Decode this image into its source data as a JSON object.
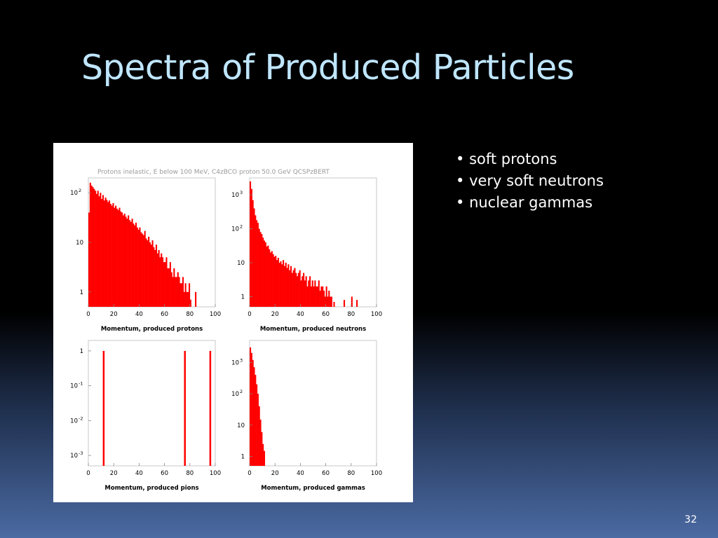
{
  "slide": {
    "title": "Spectra of Produced Particles",
    "bullets": [
      "soft protons",
      "very soft neutrons",
      "nuclear gammas"
    ],
    "page_number": "32"
  },
  "colors": {
    "background": "#000000",
    "title": "#bfe6ff",
    "text": "#ffffff",
    "bars": "#ff0000"
  },
  "chart_data": {
    "suptitle": "Protons inelastic, E below 100 MeV,  C4zBCO proton 50.0 GeV QCSPzBERT",
    "panels": [
      {
        "type": "bar",
        "yscale": "log",
        "xlim": [
          0,
          100
        ],
        "ylim_decades": [
          -0.3,
          2.3
        ],
        "xlabel": "Momentum, produced protons",
        "xticks": [
          "0",
          "20",
          "40",
          "60",
          "80",
          "100"
        ],
        "yticks": [
          {
            "base": "1",
            "exp": "",
            "dec": 0
          },
          {
            "base": "10",
            "exp": "",
            "dec": 1
          },
          {
            "base": "10",
            "exp": "2",
            "dec": 2
          }
        ],
        "series": [
          {
            "x": [
              0,
              1,
              2,
              3,
              4,
              5,
              6,
              7,
              8,
              9,
              10,
              11,
              12,
              13,
              14,
              15,
              16,
              17,
              18,
              19,
              20,
              21,
              22,
              23,
              24,
              25,
              26,
              27,
              28,
              29,
              30,
              31,
              32,
              33,
              34,
              35,
              36,
              37,
              38,
              39,
              40,
              41,
              42,
              43,
              44,
              45,
              46,
              47,
              48,
              49,
              50,
              51,
              52,
              53,
              54,
              55,
              56,
              57,
              58,
              59,
              60,
              61,
              62,
              63,
              64,
              65,
              66,
              67,
              68,
              69,
              70,
              71,
              72,
              73,
              74,
              75,
              76,
              77,
              78,
              79,
              80,
              81,
              82,
              83,
              84,
              85,
              86,
              87,
              88,
              89,
              90,
              91,
              92,
              93,
              94,
              95,
              96,
              97,
              98,
              99
            ],
            "values": [
              40,
              160,
              140,
              130,
              120,
              110,
              95,
              110,
              85,
              100,
              75,
              90,
              70,
              80,
              72,
              65,
              70,
              60,
              55,
              62,
              50,
              55,
              48,
              45,
              50,
              42,
              40,
              35,
              38,
              33,
              30,
              35,
              28,
              26,
              30,
              24,
              22,
              25,
              20,
              18,
              20,
              16,
              15,
              14,
              17,
              12,
              11,
              13,
              10,
              9,
              11,
              8,
              7,
              9,
              6,
              7,
              5,
              6,
              5,
              4,
              4,
              5,
              3,
              3,
              4,
              2.5,
              2,
              3,
              2,
              2,
              2.5,
              2,
              1.5,
              1.5,
              2,
              1,
              1.5,
              1,
              1,
              1.5,
              0.7,
              0,
              0,
              0,
              1,
              0,
              0,
              0,
              0,
              0,
              0,
              0,
              0,
              0,
              0,
              0,
              0,
              0,
              0,
              0
            ]
          }
        ]
      },
      {
        "type": "bar",
        "yscale": "log",
        "xlim": [
          0,
          100
        ],
        "ylim_decades": [
          -0.3,
          3.5
        ],
        "xlabel": "Momentum, produced neutrons",
        "xticks": [
          "0",
          "20",
          "40",
          "60",
          "80",
          "100"
        ],
        "yticks": [
          {
            "base": "1",
            "exp": "",
            "dec": 0
          },
          {
            "base": "10",
            "exp": "",
            "dec": 1
          },
          {
            "base": "10",
            "exp": "2",
            "dec": 2
          },
          {
            "base": "10",
            "exp": "3",
            "dec": 3
          }
        ],
        "series": [
          {
            "x": [
              0,
              1,
              2,
              3,
              4,
              5,
              6,
              7,
              8,
              9,
              10,
              11,
              12,
              13,
              14,
              15,
              16,
              17,
              18,
              19,
              20,
              21,
              22,
              23,
              24,
              25,
              26,
              27,
              28,
              29,
              30,
              31,
              32,
              33,
              34,
              35,
              36,
              37,
              38,
              39,
              40,
              41,
              42,
              43,
              44,
              45,
              46,
              47,
              48,
              49,
              50,
              51,
              52,
              53,
              54,
              55,
              56,
              57,
              58,
              59,
              60,
              61,
              62,
              63,
              64,
              65,
              66,
              67,
              68,
              69,
              70,
              71,
              72,
              73,
              74,
              75,
              76,
              77,
              78,
              79,
              80,
              81,
              82,
              83,
              84,
              85,
              86,
              87,
              88,
              89,
              90,
              91,
              92,
              93,
              94,
              95,
              96,
              97,
              98,
              99
            ],
            "values": [
              2500,
              1500,
              700,
              400,
              250,
              180,
              150,
              100,
              80,
              70,
              55,
              45,
              40,
              30,
              32,
              25,
              20,
              22,
              18,
              15,
              16,
              12,
              14,
              10,
              11,
              9,
              12,
              8,
              10,
              7,
              9,
              6,
              8,
              5,
              6,
              7,
              5,
              4,
              5,
              6,
              3,
              4,
              5,
              3,
              4,
              2,
              3,
              4,
              2,
              3,
              2,
              3,
              2,
              2,
              3,
              1.5,
              2,
              2,
              1.5,
              1,
              2,
              1,
              1.5,
              1,
              1,
              0.5,
              0.7,
              0,
              0,
              0.5,
              0,
              0,
              0,
              0,
              0.8,
              0,
              0,
              0,
              0,
              0,
              1,
              0,
              0,
              0,
              0.8,
              0,
              0,
              0,
              0,
              0,
              0,
              0,
              0,
              0,
              0,
              0,
              0,
              0,
              0,
              0
            ]
          }
        ]
      },
      {
        "type": "bar",
        "yscale": "log",
        "xlim": [
          0,
          100
        ],
        "ylim_decades": [
          -3.3,
          0.3
        ],
        "xlabel": "Momentum, produced pions",
        "xticks": [
          "0",
          "20",
          "40",
          "60",
          "80",
          "100"
        ],
        "yticks": [
          {
            "base": "10",
            "exp": "-3",
            "dec": -3
          },
          {
            "base": "10",
            "exp": "-2",
            "dec": -2
          },
          {
            "base": "10",
            "exp": "-1",
            "dec": -1
          },
          {
            "base": "1",
            "exp": "",
            "dec": 0
          }
        ],
        "series": [
          {
            "x": [
              12,
              76,
              96
            ],
            "values": [
              1,
              1,
              1
            ]
          }
        ]
      },
      {
        "type": "bar",
        "yscale": "log",
        "xlim": [
          0,
          100
        ],
        "ylim_decades": [
          -0.3,
          3.7
        ],
        "xlabel": "Momentum, produced gammas",
        "xticks": [
          "0",
          "20",
          "40",
          "60",
          "80",
          "100"
        ],
        "yticks": [
          {
            "base": "1",
            "exp": "",
            "dec": 0
          },
          {
            "base": "10",
            "exp": "",
            "dec": 1
          },
          {
            "base": "10",
            "exp": "2",
            "dec": 2
          },
          {
            "base": "10",
            "exp": "3",
            "dec": 3
          }
        ],
        "series": [
          {
            "x": [
              0,
              1,
              2,
              3,
              4,
              5,
              6,
              7,
              8,
              9,
              10,
              11,
              12,
              13,
              14,
              15,
              16,
              17,
              18,
              19,
              20,
              21,
              22,
              23,
              24,
              25,
              26,
              27,
              28,
              29,
              30,
              31,
              32,
              33,
              34,
              35,
              36,
              37,
              38,
              39,
              40,
              41,
              42,
              43,
              44,
              45,
              46,
              47,
              48,
              49,
              50,
              51,
              52,
              53,
              54,
              55,
              56,
              57,
              58,
              59,
              60,
              61,
              62,
              63,
              64,
              65,
              66,
              67,
              68,
              69,
              70,
              71,
              72,
              73,
              74,
              75,
              76,
              77,
              78,
              79,
              80,
              81,
              82,
              83,
              84,
              85,
              86,
              87,
              88,
              89,
              90,
              91,
              92,
              93,
              94,
              95,
              96,
              97,
              98,
              99
            ],
            "values": [
              3000,
              2000,
              1200,
              700,
              400,
              200,
              100,
              40,
              15,
              6,
              2.5,
              1.5,
              0,
              0,
              0,
              0,
              0,
              0,
              0,
              0,
              0,
              0,
              0,
              0,
              0,
              0,
              0,
              0,
              0,
              0,
              0,
              0,
              0,
              0,
              0,
              0,
              0,
              0,
              0,
              0,
              0,
              0,
              0,
              0,
              0,
              0,
              0,
              0,
              0,
              0,
              0,
              0,
              0,
              0,
              0,
              0,
              0,
              0,
              0,
              0,
              0,
              0,
              0,
              0,
              0,
              0,
              0,
              0,
              0,
              0,
              0,
              0,
              0,
              0,
              0,
              0,
              0,
              0,
              0,
              0,
              0,
              0,
              0,
              0,
              0,
              0,
              0,
              0,
              0,
              0,
              0,
              0,
              0,
              0,
              0,
              0,
              0,
              0,
              0,
              0
            ]
          }
        ]
      }
    ]
  }
}
